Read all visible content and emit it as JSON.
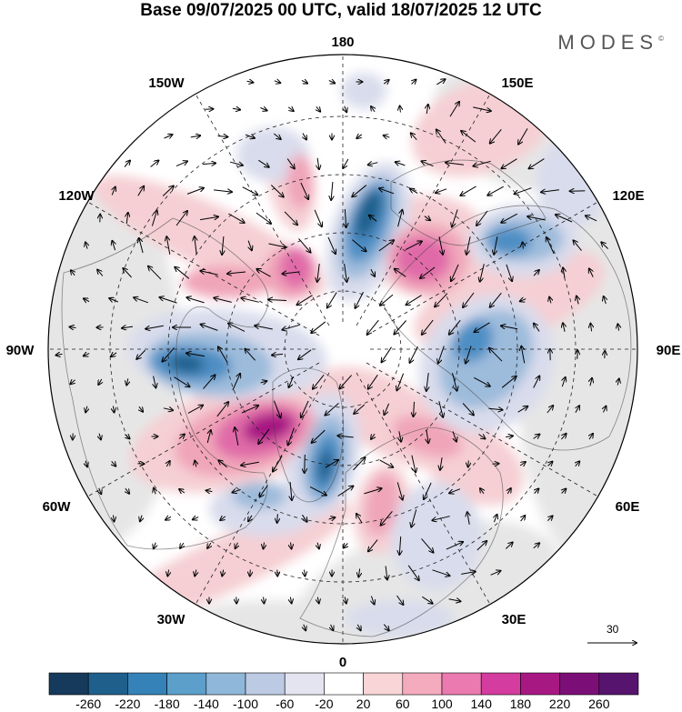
{
  "title": "Base 09/07/2025 00 UTC, valid 18/07/2025 12 UTC",
  "brand": {
    "name": "MODES",
    "mark": "©"
  },
  "longitude_labels": {
    "top": "180",
    "bottom": "0",
    "left": "90W",
    "right": "90E",
    "upper_left_1": "150W",
    "upper_left_2": "120W",
    "upper_right_1": "150E",
    "upper_right_2": "120E",
    "lower_left_1": "60W",
    "lower_left_2": "30W",
    "lower_right_1": "60E",
    "lower_right_2": "30E"
  },
  "reference_vector": {
    "value": "30"
  },
  "colorbar": {
    "labels": [
      "-260",
      "-220",
      "-180",
      "-140",
      "-100",
      "-60",
      "-20",
      "20",
      "60",
      "100",
      "140",
      "180",
      "220",
      "260"
    ],
    "colors": [
      "#163a5c",
      "#1f5f8c",
      "#3482b8",
      "#5c9fcb",
      "#8fb7da",
      "#bccbe3",
      "#e4e4f0",
      "#ffffff",
      "#f9d5d8",
      "#f4abbd",
      "#eb7ab0",
      "#d43c9f",
      "#a81883",
      "#7c0f77",
      "#56146e"
    ]
  },
  "map_colors": {
    "ocean_gray": "#e6e6e6",
    "neg_light": "#d9dcec",
    "neg_mid": "#9dbbdb",
    "neg_strong": "#4e8ec4",
    "neg_core": "#1f5f8c",
    "pos_light": "#f5cfd3",
    "pos_mid": "#f0a5b9",
    "pos_strong": "#e06aa8",
    "pos_core": "#a81883"
  }
}
